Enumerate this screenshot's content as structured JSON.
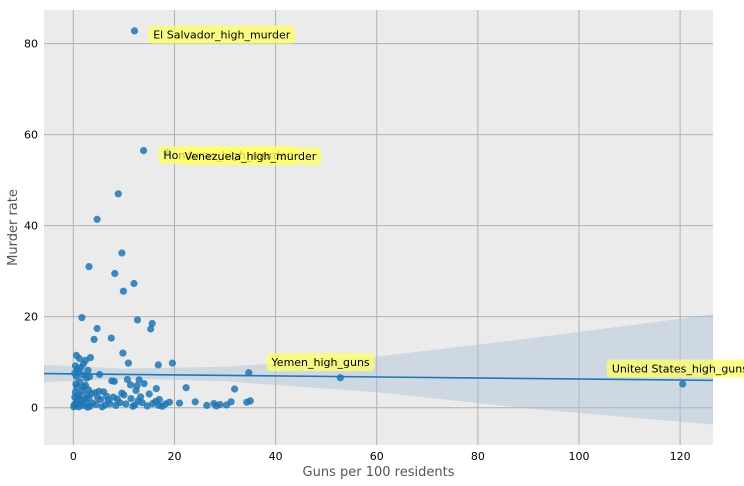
{
  "chart_data": {
    "type": "scatter",
    "title": "",
    "xlabel": "Guns per 100 residents",
    "ylabel": "Murder rate",
    "xlim": [
      -5.8,
      126.5
    ],
    "ylim": [
      -8.2,
      87.4
    ],
    "xticks": [
      0,
      20,
      40,
      60,
      80,
      100,
      120
    ],
    "yticks": [
      0,
      20,
      40,
      60,
      80
    ],
    "grid": true,
    "background": "#ebebeb",
    "point_color": "#1f77b4",
    "line_color": "#1f77b4",
    "band_color": "#a9c1d6",
    "annotation_color": "#ffff66",
    "regression": {
      "line": [
        [
          -5.8,
          7.5
        ],
        [
          126.5,
          6.0
        ]
      ],
      "band_upper": [
        [
          -5.8,
          9.4
        ],
        [
          10,
          8.6
        ],
        [
          30,
          9.0
        ],
        [
          60,
          11.2
        ],
        [
          90,
          15.2
        ],
        [
          126.5,
          20.5
        ]
      ],
      "band_lower": [
        [
          -5.8,
          5.6
        ],
        [
          10,
          6.4
        ],
        [
          30,
          5.8
        ],
        [
          60,
          3.4
        ],
        [
          90,
          -0.2
        ],
        [
          126.5,
          -3.7
        ]
      ]
    },
    "points": [
      [
        12.1,
        82.8
      ],
      [
        13.9,
        56.5
      ],
      [
        18.5,
        56.2
      ],
      [
        8.9,
        47.0
      ],
      [
        4.7,
        41.4
      ],
      [
        9.6,
        34.0
      ],
      [
        3.1,
        31.0
      ],
      [
        8.2,
        29.5
      ],
      [
        12.0,
        27.3
      ],
      [
        9.9,
        25.6
      ],
      [
        1.7,
        19.8
      ],
      [
        12.7,
        19.3
      ],
      [
        15.6,
        18.5
      ],
      [
        15.3,
        17.3
      ],
      [
        4.7,
        17.4
      ],
      [
        7.5,
        15.3
      ],
      [
        4.1,
        15.0
      ],
      [
        9.8,
        12.0
      ],
      [
        0.6,
        11.5
      ],
      [
        1.2,
        10.8
      ],
      [
        3.4,
        11.0
      ],
      [
        2.4,
        10.4
      ],
      [
        2.0,
        9.6
      ],
      [
        10.9,
        9.8
      ],
      [
        19.6,
        9.8
      ],
      [
        16.8,
        9.4
      ],
      [
        0.4,
        9.2
      ],
      [
        1.5,
        8.8
      ],
      [
        0.8,
        8.5
      ],
      [
        2.9,
        8.2
      ],
      [
        1.0,
        8.0
      ],
      [
        34.7,
        7.7
      ],
      [
        0.3,
        7.6
      ],
      [
        5.2,
        7.3
      ],
      [
        1.9,
        7.2
      ],
      [
        0.6,
        6.9
      ],
      [
        3.2,
        6.8
      ],
      [
        2.6,
        6.5
      ],
      [
        52.8,
        6.6
      ],
      [
        10.7,
        6.2
      ],
      [
        13.0,
        6.1
      ],
      [
        7.6,
        5.9
      ],
      [
        8.1,
        5.8
      ],
      [
        1.3,
        5.7
      ],
      [
        14.0,
        5.3
      ],
      [
        0.5,
        5.2
      ],
      [
        120.5,
        5.2
      ],
      [
        11.3,
        5.0
      ],
      [
        12.6,
        4.8
      ],
      [
        2.4,
        4.9
      ],
      [
        2.0,
        4.6
      ],
      [
        0.7,
        4.5
      ],
      [
        22.3,
        4.4
      ],
      [
        16.4,
        4.2
      ],
      [
        31.9,
        4.1
      ],
      [
        3.0,
        3.9
      ],
      [
        12.4,
        3.8
      ],
      [
        1.8,
        3.7
      ],
      [
        5.1,
        3.6
      ],
      [
        6.0,
        3.5
      ],
      [
        0.4,
        3.4
      ],
      [
        4.3,
        3.3
      ],
      [
        9.6,
        3.2
      ],
      [
        3.6,
        3.1
      ],
      [
        15.0,
        3.0
      ],
      [
        1.2,
        2.9
      ],
      [
        10.0,
        2.8
      ],
      [
        2.7,
        2.7
      ],
      [
        0.9,
        2.6
      ],
      [
        6.6,
        2.5
      ],
      [
        13.3,
        2.4
      ],
      [
        0.3,
        2.3
      ],
      [
        7.9,
        2.3
      ],
      [
        4.8,
        2.2
      ],
      [
        3.1,
        2.1
      ],
      [
        11.4,
        2.0
      ],
      [
        2.2,
        1.9
      ],
      [
        8.7,
        1.9
      ],
      [
        17.0,
        1.8
      ],
      [
        5.4,
        1.8
      ],
      [
        0.8,
        1.7
      ],
      [
        1.6,
        1.6
      ],
      [
        6.9,
        1.6
      ],
      [
        12.8,
        1.5
      ],
      [
        35.0,
        1.5
      ],
      [
        16.3,
        1.4
      ],
      [
        24.1,
        1.3
      ],
      [
        31.2,
        1.3
      ],
      [
        34.3,
        1.2
      ],
      [
        19.0,
        1.2
      ],
      [
        2.5,
        1.2
      ],
      [
        9.2,
        1.1
      ],
      [
        13.6,
        1.1
      ],
      [
        0.6,
        1.1
      ],
      [
        3.8,
        1.0
      ],
      [
        21.0,
        1.0
      ],
      [
        27.8,
        0.9
      ],
      [
        7.2,
        0.9
      ],
      [
        15.7,
        0.9
      ],
      [
        10.4,
        0.8
      ],
      [
        1.4,
        0.8
      ],
      [
        18.2,
        0.8
      ],
      [
        29.0,
        0.7
      ],
      [
        4.5,
        0.7
      ],
      [
        0.2,
        0.7
      ],
      [
        12.2,
        0.6
      ],
      [
        30.3,
        0.6
      ],
      [
        6.3,
        0.6
      ],
      [
        2.0,
        0.5
      ],
      [
        16.9,
        0.5
      ],
      [
        26.4,
        0.5
      ],
      [
        8.4,
        0.5
      ],
      [
        14.6,
        0.4
      ],
      [
        0.5,
        0.4
      ],
      [
        28.3,
        0.4
      ],
      [
        3.3,
        0.3
      ],
      [
        17.6,
        0.3
      ],
      [
        11.8,
        0.3
      ],
      [
        1.1,
        0.2
      ],
      [
        5.7,
        0.2
      ],
      [
        0.1,
        0.2
      ],
      [
        2.8,
        0.1
      ]
    ],
    "annotations": [
      {
        "text": "El Salvador_high_murder",
        "x": 15.8,
        "y": 82.0
      },
      {
        "text": "Honduras_high_murder",
        "x": 17.8,
        "y": 55.5
      },
      {
        "text": "Venezuela_high_murder",
        "x": 22.0,
        "y": 55.3
      },
      {
        "text": "Yemen_high_guns",
        "x": 39.2,
        "y": 10.0
      },
      {
        "text": "United States_high_guns",
        "x": 106.5,
        "y": 8.6
      }
    ]
  }
}
